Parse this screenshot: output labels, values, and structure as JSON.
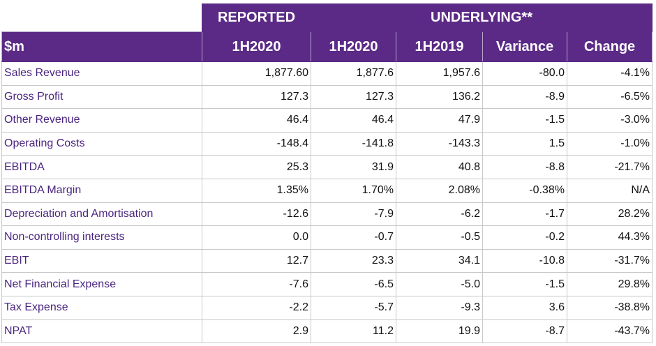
{
  "header": {
    "reported_label": "REPORTED",
    "underlying_label": "UNDERLYING**"
  },
  "columns": [
    "$m",
    "1H2020",
    "1H2020",
    "1H2019",
    "Variance",
    "Change"
  ],
  "rows": [
    {
      "label": "Sales Revenue",
      "values": [
        "1,877.60",
        "1,877.6",
        "1,957.6",
        "-80.0",
        "-4.1%"
      ]
    },
    {
      "label": "Gross Profit",
      "values": [
        "127.3",
        "127.3",
        "136.2",
        "-8.9",
        "-6.5%"
      ]
    },
    {
      "label": "Other Revenue",
      "values": [
        "46.4",
        "46.4",
        "47.9",
        "-1.5",
        "-3.0%"
      ]
    },
    {
      "label": "Operating Costs",
      "values": [
        "-148.4",
        "-141.8",
        "-143.3",
        "1.5",
        "-1.0%"
      ]
    },
    {
      "label": "EBITDA",
      "values": [
        "25.3",
        "31.9",
        "40.8",
        "-8.8",
        "-21.7%"
      ]
    },
    {
      "label": "EBITDA Margin",
      "values": [
        "1.35%",
        "1.70%",
        "2.08%",
        "-0.38%",
        "N/A"
      ]
    },
    {
      "label": "Depreciation and Amortisation",
      "values": [
        "-12.6",
        "-7.9",
        "-6.2",
        "-1.7",
        "28.2%"
      ]
    },
    {
      "label": "Non-controlling interests",
      "values": [
        "0.0",
        "-0.7",
        "-0.5",
        "-0.2",
        "44.3%"
      ]
    },
    {
      "label": "EBIT",
      "values": [
        "12.7",
        "23.3",
        "34.1",
        "-10.8",
        "-31.7%"
      ]
    },
    {
      "label": "Net Financial Expense",
      "values": [
        "-7.6",
        "-6.5",
        "-5.0",
        "-1.5",
        "29.8%"
      ]
    },
    {
      "label": "Tax Expense",
      "values": [
        "-2.2",
        "-5.7",
        "-9.3",
        "3.6",
        "-38.8%"
      ]
    },
    {
      "label": "NPAT",
      "values": [
        "2.9",
        "11.2",
        "19.9",
        "-8.7",
        "-43.7%"
      ]
    }
  ],
  "colors": {
    "header_purple": "#5b2a86",
    "label_text": "#4a2580"
  }
}
